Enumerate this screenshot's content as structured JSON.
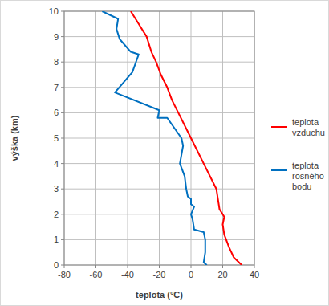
{
  "chart_data": {
    "type": "line",
    "x_label": "teplota (°C)",
    "y_label": "výška (km)",
    "xlim": [
      -80,
      40
    ],
    "xticks": [
      -80,
      -60,
      -40,
      -20,
      0,
      20,
      40
    ],
    "ylim": [
      0,
      10
    ],
    "yticks": [
      0,
      1,
      2,
      3,
      4,
      5,
      6,
      7,
      8,
      9,
      10
    ],
    "grid": true,
    "legend": "right",
    "series": [
      {
        "name": "teplota vzduchu",
        "color": "#ff0000",
        "x": [
          32,
          27,
          24,
          21,
          20,
          21,
          18,
          17,
          16,
          8,
          0,
          -8,
          -12,
          -15,
          -19,
          -22,
          -25,
          -28,
          -33,
          -38
        ],
        "values": [
          0,
          0.3,
          0.7,
          1.2,
          1.6,
          1.9,
          2.2,
          2.6,
          3.0,
          4.0,
          5.0,
          6.0,
          6.5,
          7.0,
          7.5,
          8.0,
          8.4,
          9.0,
          9.5,
          10.0
        ]
      },
      {
        "name": "teplota rosného bodu",
        "color": "#0070c0",
        "x": [
          10,
          8,
          9,
          9,
          8,
          2,
          1,
          0,
          2,
          0,
          0,
          -2,
          -3,
          -4,
          -7,
          -5,
          -6,
          -15,
          -21,
          -20,
          -48,
          -37,
          -33,
          -38,
          -45,
          -47,
          -46,
          -56
        ],
        "values": [
          0,
          0.1,
          0.5,
          1.0,
          1.3,
          1.4,
          1.8,
          2.0,
          2.3,
          2.4,
          2.6,
          2.7,
          3.0,
          3.5,
          4.0,
          4.7,
          5.0,
          5.8,
          5.8,
          6.1,
          6.8,
          7.6,
          8.3,
          8.4,
          8.9,
          9.3,
          9.7,
          10.0
        ]
      }
    ]
  }
}
